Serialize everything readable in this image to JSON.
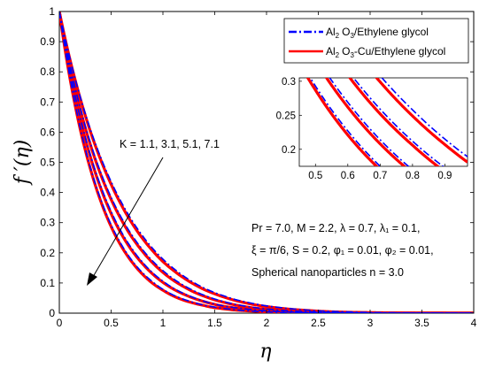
{
  "chart_data": {
    "type": "line",
    "xlabel": "η",
    "ylabel": "f ′(η)",
    "xlim": [
      0,
      4
    ],
    "ylim": [
      0,
      1
    ],
    "x_ticks": [
      "0",
      "0.5",
      "1",
      "1.5",
      "2",
      "2.5",
      "3",
      "3.5",
      "4"
    ],
    "y_ticks": [
      "0",
      "0.1",
      "0.2",
      "0.3",
      "0.4",
      "0.5",
      "0.6",
      "0.7",
      "0.8",
      "0.9",
      "1"
    ],
    "legend": {
      "placement": "top-right",
      "entries": [
        {
          "line1": "Al",
          "sub": "2",
          "line2": "O",
          "sub2": "3",
          "rest": "/Ethylene glycol",
          "color": "#0000ff",
          "style": "dash-dot"
        },
        {
          "line1": "Al",
          "sub": "2",
          "line2": "O",
          "sub2": "3",
          "rest": "-Cu/Ethylene glycol",
          "color": "#ff0000",
          "style": "solid"
        }
      ]
    },
    "k_annotation": "K = 1.1, 3.1, 5.1, 7.1",
    "param_lines": [
      "Pr = 7.0, M = 2.2, λ = 0.7, λ₁ = 0.1,",
      "ξ = π/6, S = 0.2, φ₁ = 0.01, φ₂ = 0.01,",
      "Spherical nanoparticles n = 3.0"
    ],
    "colors": {
      "series_a": "#0000ff",
      "series_b": "#ff0000"
    },
    "x": [
      0,
      0.05,
      0.1,
      0.15,
      0.2,
      0.25,
      0.3,
      0.4,
      0.5,
      0.6,
      0.7,
      0.8,
      0.9,
      1.0,
      1.1,
      1.2,
      1.3,
      1.4,
      1.5,
      1.6,
      1.7,
      1.8,
      1.9,
      2.0,
      2.2,
      2.4,
      2.6,
      2.8,
      3.0,
      3.2,
      3.4,
      3.6,
      3.8,
      4.0
    ],
    "series": [
      {
        "name": "Al2O3/Ethylene glycol, K = 1.1",
        "group": "A",
        "values": [
          1,
          0.921,
          0.848,
          0.781,
          0.719,
          0.662,
          0.609,
          0.516,
          0.436,
          0.367,
          0.308,
          0.258,
          0.215,
          0.179,
          0.149,
          0.123,
          0.101,
          0.083,
          0.068,
          0.056,
          0.045,
          0.037,
          0.03,
          0.024,
          0.016,
          0.01,
          0.006,
          0.004,
          0.002,
          0.0013,
          0.0008,
          0.0005,
          0.0003,
          0.0002
        ]
      },
      {
        "name": "Al2O3/Ethylene glycol, K = 3.1",
        "group": "A",
        "values": [
          1,
          0.909,
          0.826,
          0.751,
          0.683,
          0.621,
          0.564,
          0.466,
          0.384,
          0.316,
          0.259,
          0.212,
          0.173,
          0.141,
          0.114,
          0.092,
          0.074,
          0.059,
          0.047,
          0.037,
          0.029,
          0.023,
          0.018,
          0.014,
          0.008,
          0.005,
          0.003,
          0.0017,
          0.001,
          0.0006,
          0.0003,
          0.0002,
          0.0001,
          0.0001
        ]
      },
      {
        "name": "Al2O3/Ethylene glycol, K = 5.1",
        "group": "A",
        "values": [
          1,
          0.898,
          0.807,
          0.725,
          0.651,
          0.584,
          0.524,
          0.421,
          0.337,
          0.269,
          0.214,
          0.17,
          0.134,
          0.106,
          0.083,
          0.065,
          0.051,
          0.039,
          0.03,
          0.023,
          0.018,
          0.014,
          0.01,
          0.008,
          0.004,
          0.002,
          0.0013,
          0.0007,
          0.0004,
          0.0002,
          0.0001,
          0.0001,
          0,
          0
        ]
      },
      {
        "name": "Al2O3/Ethylene glycol, K = 7.1",
        "group": "A",
        "values": [
          1,
          0.887,
          0.786,
          0.697,
          0.617,
          0.546,
          0.483,
          0.377,
          0.293,
          0.227,
          0.175,
          0.135,
          0.104,
          0.079,
          0.06,
          0.046,
          0.035,
          0.026,
          0.02,
          0.015,
          0.011,
          0.008,
          0.006,
          0.004,
          0.002,
          0.0012,
          0.0006,
          0.0003,
          0.0002,
          0.0001,
          0,
          0,
          0,
          0
        ]
      },
      {
        "name": "Al2O3-Cu/Ethylene glycol, K = 1.1",
        "group": "B",
        "values": [
          1,
          0.919,
          0.845,
          0.777,
          0.714,
          0.656,
          0.602,
          0.508,
          0.427,
          0.358,
          0.299,
          0.249,
          0.207,
          0.171,
          0.142,
          0.117,
          0.096,
          0.078,
          0.064,
          0.052,
          0.042,
          0.034,
          0.027,
          0.022,
          0.014,
          0.009,
          0.005,
          0.003,
          0.002,
          0.0011,
          0.0007,
          0.0004,
          0.0002,
          0.0001
        ]
      },
      {
        "name": "Al2O3-Cu/Ethylene glycol, K = 3.1",
        "group": "B",
        "values": [
          1,
          0.907,
          0.823,
          0.747,
          0.678,
          0.615,
          0.558,
          0.459,
          0.377,
          0.309,
          0.252,
          0.206,
          0.167,
          0.135,
          0.109,
          0.088,
          0.07,
          0.056,
          0.044,
          0.035,
          0.027,
          0.021,
          0.016,
          0.013,
          0.007,
          0.004,
          0.0025,
          0.0014,
          0.0008,
          0.0004,
          0.0002,
          0.0001,
          0.0001,
          0
        ]
      },
      {
        "name": "Al2O3-Cu/Ethylene glycol, K = 5.1",
        "group": "B",
        "values": [
          1,
          0.896,
          0.803,
          0.72,
          0.645,
          0.578,
          0.518,
          0.414,
          0.33,
          0.262,
          0.208,
          0.165,
          0.13,
          0.102,
          0.08,
          0.063,
          0.049,
          0.038,
          0.029,
          0.022,
          0.017,
          0.013,
          0.01,
          0.007,
          0.004,
          0.002,
          0.0011,
          0.0006,
          0.0003,
          0.0002,
          0.0001,
          0,
          0,
          0
        ]
      },
      {
        "name": "Al2O3-Cu/Ethylene glycol, K = 7.1",
        "group": "B",
        "values": [
          1,
          0.885,
          0.783,
          0.693,
          0.612,
          0.541,
          0.478,
          0.371,
          0.287,
          0.221,
          0.17,
          0.13,
          0.099,
          0.076,
          0.057,
          0.043,
          0.033,
          0.025,
          0.018,
          0.014,
          0.01,
          0.008,
          0.006,
          0.004,
          0.002,
          0.0011,
          0.0005,
          0.0003,
          0.0001,
          0.0001,
          0,
          0,
          0,
          0
        ]
      }
    ],
    "inset": {
      "xlim": [
        0.45,
        0.97
      ],
      "ylim": [
        0.175,
        0.305
      ],
      "x_ticks": [
        "0.5",
        "0.6",
        "0.7",
        "0.8",
        "0.9"
      ],
      "y_ticks": [
        "0.2",
        "0.25",
        "0.3"
      ]
    }
  }
}
